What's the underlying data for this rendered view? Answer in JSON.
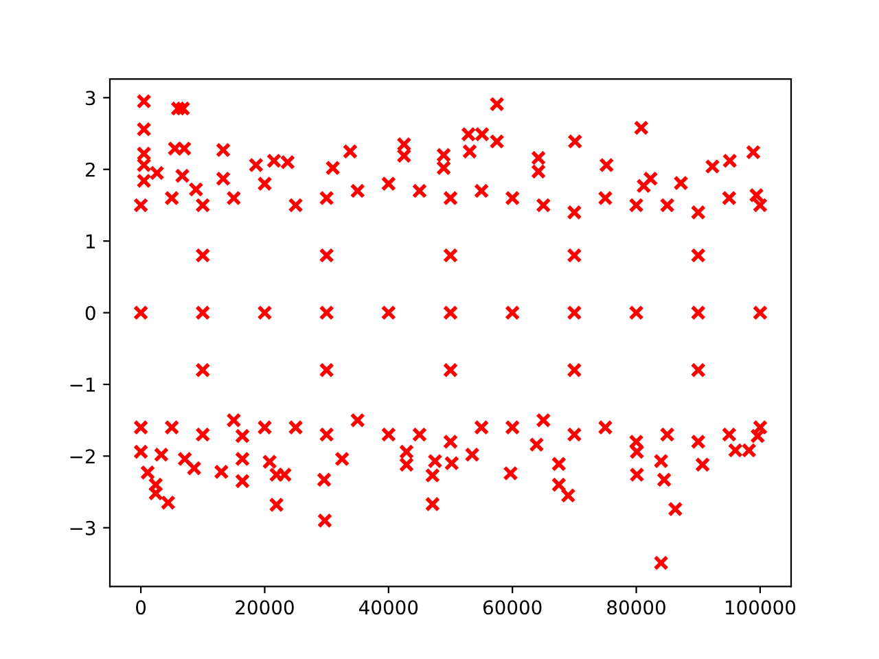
{
  "chart_data": {
    "type": "scatter",
    "marker": "cross",
    "xlim": [
      -5000,
      105000
    ],
    "ylim": [
      -3.82,
      3.26
    ],
    "xticks": [
      0,
      20000,
      40000,
      60000,
      80000,
      100000
    ],
    "yticks": [
      {
        "value": -3,
        "label": "−3"
      },
      {
        "value": -2,
        "label": "−2"
      },
      {
        "value": -1,
        "label": "−1"
      },
      0,
      1,
      2,
      3
    ],
    "series": [
      {
        "color": "#ff0000",
        "x": [
          500,
          500,
          500,
          500,
          500,
          2600,
          6000,
          6800,
          5500,
          7000,
          6700,
          8900,
          13300,
          13300,
          18600,
          21500,
          23700,
          31000,
          33800,
          42500,
          42500,
          48900,
          48900,
          52900,
          53100,
          55100,
          57500,
          57500,
          64200,
          64200,
          70100,
          75200,
          80800,
          81200,
          82300,
          87200,
          92300,
          95100,
          98900,
          99400,
          0,
          1100,
          2400,
          2400,
          4400,
          3300,
          7100,
          8600,
          13000,
          16400,
          16400,
          16400,
          20800,
          21900,
          23200,
          21900,
          29700,
          29600,
          32500,
          42900,
          42900,
          47100,
          47100,
          47500,
          50200,
          53500,
          59700,
          63900,
          67500,
          67500,
          69000,
          80100,
          80100,
          84000,
          86300,
          84000,
          84500,
          90700,
          96000,
          98200,
          99600,
          0,
          5000,
          10000,
          15000,
          20000,
          25000,
          30000,
          35000,
          40000,
          45000,
          50000,
          55000,
          60000,
          65000,
          70000,
          75000,
          80000,
          85000,
          90000,
          95000,
          100000,
          0,
          5000,
          10000,
          15000,
          20000,
          25000,
          30000,
          35000,
          40000,
          45000,
          50000,
          55000,
          60000,
          65000,
          70000,
          75000,
          80000,
          85000,
          90000,
          95000,
          100000,
          0,
          10000,
          20000,
          30000,
          40000,
          50000,
          60000,
          70000,
          80000,
          90000,
          100000,
          10000,
          30000,
          50000,
          70000,
          90000,
          10000,
          30000,
          50000,
          70000,
          90000
        ],
        "values": [
          2.95,
          2.56,
          2.22,
          2.06,
          1.84,
          1.95,
          2.85,
          2.85,
          2.29,
          2.29,
          1.91,
          1.72,
          2.27,
          1.87,
          2.06,
          2.12,
          2.1,
          2.02,
          2.25,
          2.35,
          2.19,
          2.2,
          2.02,
          2.49,
          2.25,
          2.49,
          2.91,
          2.39,
          2.16,
          1.97,
          2.39,
          2.06,
          2.58,
          1.77,
          1.87,
          1.81,
          2.04,
          2.12,
          2.24,
          1.64,
          -1.94,
          -2.23,
          -2.4,
          -2.52,
          -2.65,
          -1.98,
          -2.04,
          -2.17,
          -2.22,
          -2.35,
          -2.04,
          -1.72,
          -2.08,
          -2.26,
          -2.26,
          -2.68,
          -2.9,
          -2.33,
          -2.04,
          -2.12,
          -1.94,
          -2.67,
          -2.27,
          -2.07,
          -2.1,
          -1.98,
          -2.24,
          -1.84,
          -2.11,
          -2.4,
          -2.55,
          -2.26,
          -1.94,
          -3.49,
          -2.74,
          -2.07,
          -2.33,
          -2.12,
          -1.92,
          -1.92,
          -1.72,
          1.5,
          1.6,
          1.5,
          1.6,
          1.8,
          1.5,
          1.6,
          1.7,
          1.8,
          1.7,
          1.6,
          1.7,
          1.6,
          1.5,
          1.4,
          1.6,
          1.5,
          1.5,
          1.4,
          1.6,
          1.5,
          -1.6,
          -1.6,
          -1.7,
          -1.5,
          -1.6,
          -1.6,
          -1.7,
          -1.5,
          -1.7,
          -1.7,
          -1.8,
          -1.6,
          -1.6,
          -1.5,
          -1.7,
          -1.6,
          -1.8,
          -1.7,
          -1.8,
          -1.7,
          -1.6,
          0,
          0,
          0,
          0,
          0,
          0,
          0,
          0,
          0,
          0,
          0,
          0.8,
          0.8,
          0.8,
          0.8,
          0.8,
          -0.8,
          -0.8,
          -0.8,
          -0.8,
          -0.8
        ]
      }
    ]
  }
}
